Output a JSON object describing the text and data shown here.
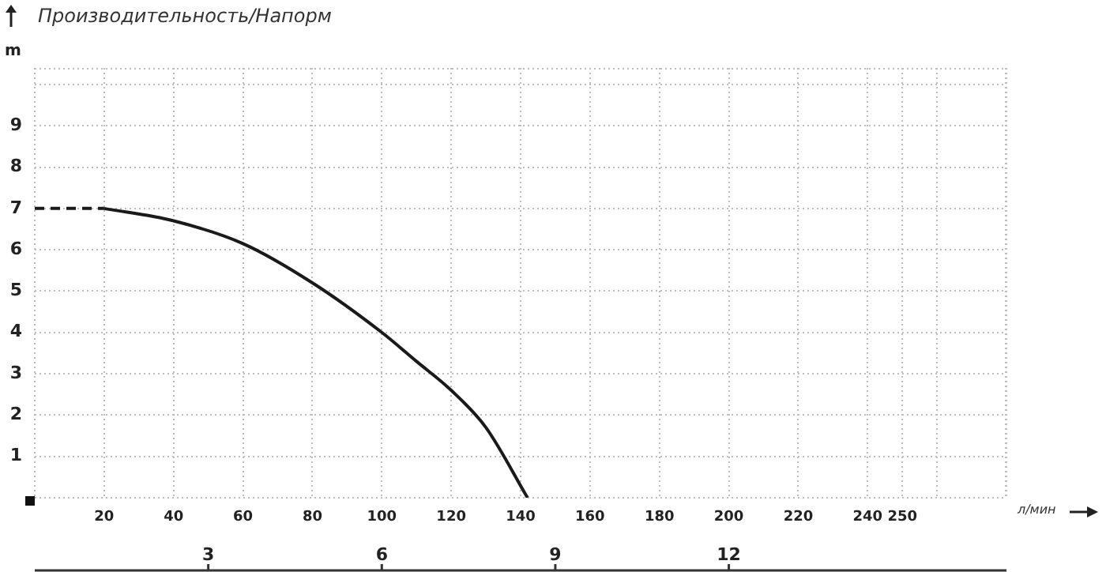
{
  "chart_data": {
    "type": "line",
    "title": "Производительность/Напорм",
    "xlabel": "л/мин",
    "ylabel": "m",
    "series": [
      {
        "color": "#1a1a1a",
        "line_style": "dashed",
        "x": [
          0,
          10,
          20
        ],
        "values": [
          7.0,
          7.0,
          7.0
        ]
      },
      {
        "color": "#1a1a1a",
        "line_style": "solid",
        "x": [
          20,
          40,
          60,
          80,
          100,
          110,
          120,
          130,
          142
        ],
        "values": [
          7.0,
          6.7,
          6.15,
          5.2,
          4.0,
          3.3,
          2.6,
          1.7,
          0
        ]
      }
    ],
    "xlim": [
      0,
      280
    ],
    "xticks": [
      {
        "value": 0,
        "label": null
      },
      20,
      40,
      60,
      80,
      100,
      120,
      140,
      160,
      180,
      200,
      220,
      240,
      250,
      {
        "value": 260,
        "label": null
      },
      {
        "value": 280,
        "label": null
      }
    ],
    "ylim": [
      0,
      10.4
    ],
    "yticks": [
      {
        "value": 0,
        "label": null
      },
      1,
      2,
      3,
      4,
      5,
      6,
      7,
      8,
      9,
      {
        "value": 10,
        "label": null
      }
    ],
    "x2lim": [
      0,
      16.8
    ],
    "x2ticks": [
      3,
      6,
      9,
      12
    ],
    "grid": true,
    "legend": false,
    "marker": "none"
  }
}
